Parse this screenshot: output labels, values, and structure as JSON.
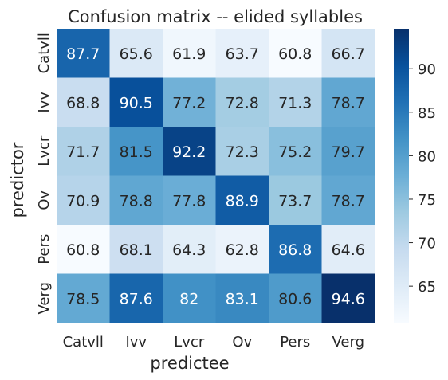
{
  "chart_data": {
    "type": "heatmap",
    "title": "Confusion matrix -- elided syllables",
    "xlabel": "predictee",
    "ylabel": "predictor",
    "x_categories": [
      "Catvll",
      "Ivv",
      "Lvcr",
      "Ov",
      "Pers",
      "Verg"
    ],
    "y_categories": [
      "Catvll",
      "Ivv",
      "Lvcr",
      "Ov",
      "Pers",
      "Verg"
    ],
    "values": [
      [
        87.7,
        65.6,
        61.9,
        63.7,
        60.8,
        66.7
      ],
      [
        68.8,
        90.5,
        77.2,
        72.8,
        71.3,
        78.7
      ],
      [
        71.7,
        81.5,
        92.2,
        72.3,
        75.2,
        79.7
      ],
      [
        70.9,
        78.8,
        77.8,
        88.9,
        73.7,
        78.7
      ],
      [
        60.8,
        68.1,
        64.3,
        62.8,
        86.8,
        64.6
      ],
      [
        78.5,
        87.6,
        82,
        83.1,
        80.6,
        94.6
      ]
    ],
    "colormap": "Blues",
    "color_range": [
      60.8,
      94.6
    ],
    "colorbar_ticks": [
      65,
      70,
      75,
      80,
      85,
      90
    ]
  }
}
